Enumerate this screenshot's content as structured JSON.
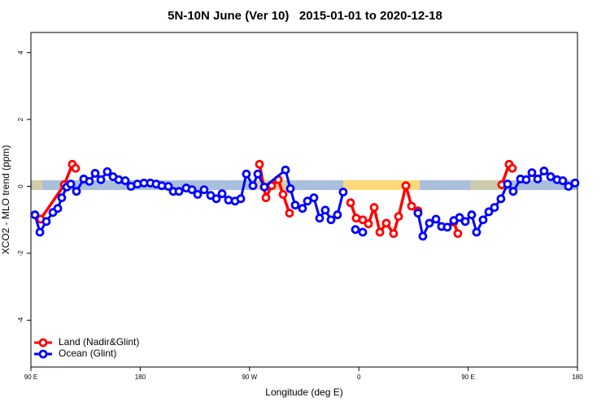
{
  "chart_data": {
    "type": "line",
    "title": "5N-10N June (Ver 10)   2015-01-01 to 2020-12-18",
    "x_label": "Longitude (deg E)",
    "y_label": "XCO2 - MLO trend (ppm)",
    "xlim": [
      90,
      540
    ],
    "ylim": [
      -5.4,
      4.6
    ],
    "xticks": [
      {
        "value": 90,
        "label": "90 E"
      },
      180,
      {
        "value": 270,
        "label": "90 W"
      },
      {
        "value": 360,
        "label": "0"
      },
      {
        "value": 450,
        "label": "90 E"
      },
      {
        "value": 540,
        "label": "180"
      }
    ],
    "yticks": [
      -4,
      -2,
      0,
      2,
      4
    ],
    "legend": "bottom-left",
    "series": [
      {
        "name": "Land (Nadir&Glint)",
        "color": "#ff0000",
        "x": [
          98.0,
          117.5,
          124.1,
          126.8,
          null,
          278.2,
          283.5,
          288.2,
          293.6,
          297.6,
          302.9,
          null,
          353.2,
          357.8,
          363.2,
          367.9,
          372.6,
          377.3,
          382.6,
          388.6,
          392.7,
          398.7,
          403.4,
          408.7,
          null,
          438.2,
          441.5,
          null,
          477.7,
          483.7,
          486.4
        ],
        "values": [
          -0.98,
          0.05,
          0.66,
          0.54,
          null,
          0.66,
          -0.34,
          0.02,
          0.2,
          -0.24,
          -0.8,
          null,
          -0.49,
          -0.95,
          -1.0,
          -1.12,
          -0.63,
          -1.37,
          -1.1,
          -1.41,
          -0.9,
          0.02,
          -0.59,
          -0.73,
          null,
          -1.07,
          -1.41,
          null,
          0.05,
          0.66,
          0.54
        ]
      },
      {
        "name": "Ocean (Glint)",
        "color": "#0000ff",
        "x": [
          93.3,
          97.4,
          102.7,
          108.1,
          112.1,
          115.4,
          119.5,
          122.8,
          127.5,
          133.5,
          138.2,
          142.9,
          147.6,
          152.9,
          157.6,
          162.3,
          167.7,
          172.4,
          177.7,
          183.1,
          188.4,
          193.1,
          197.8,
          203.2,
          207.2,
          211.9,
          217.9,
          222.6,
          227.3,
          232.6,
          238.0,
          242.7,
          247.4,
          252.7,
          258.1,
          262.8,
          267.4,
          272.8,
          276.8,
          282.2,
          299.6,
          303.6,
          307.6,
          313.6,
          317.7,
          323.0,
          327.7,
          332.4,
          337.1,
          342.4,
          347.1,
          null,
          357.2,
          363.2,
          null,
          408.7,
          412.7,
          418.1,
          423.5,
          428.1,
          432.8,
          438.2,
          442.9,
          447.6,
          452.9,
          456.9,
          462.3,
          467.0,
          471.7,
          477.0,
          482.4,
          487.1,
          493.1,
          497.8,
          502.5,
          507.2,
          512.5,
          517.9,
          523.2,
          527.9,
          532.6,
          538.0
        ],
        "values": [
          -0.85,
          -1.37,
          -1.05,
          -0.78,
          -0.66,
          -0.34,
          -0.02,
          0.07,
          -0.15,
          0.22,
          0.15,
          0.39,
          0.2,
          0.44,
          0.29,
          0.2,
          0.17,
          0,
          0.07,
          0.1,
          0.1,
          0.07,
          0.02,
          0,
          -0.15,
          -0.15,
          -0.05,
          -0.1,
          -0.24,
          -0.1,
          -0.27,
          -0.37,
          -0.22,
          -0.41,
          -0.44,
          -0.37,
          0.37,
          0.02,
          0.37,
          -0.02,
          0.49,
          -0.07,
          -0.56,
          -0.66,
          -0.44,
          -0.34,
          -0.95,
          -0.71,
          -1.0,
          -0.85,
          -0.17,
          null,
          -1.29,
          -1.37,
          null,
          -0.8,
          -1.49,
          -1.1,
          -0.98,
          -1.2,
          -1.22,
          -1.02,
          -0.93,
          -1.05,
          -0.85,
          -1.37,
          -1.0,
          -0.76,
          -0.63,
          -0.37,
          0.07,
          -0.15,
          0.22,
          0.2,
          0.41,
          0.22,
          0.46,
          0.29,
          0.2,
          0.17,
          0,
          0.1
        ]
      }
    ]
  }
}
